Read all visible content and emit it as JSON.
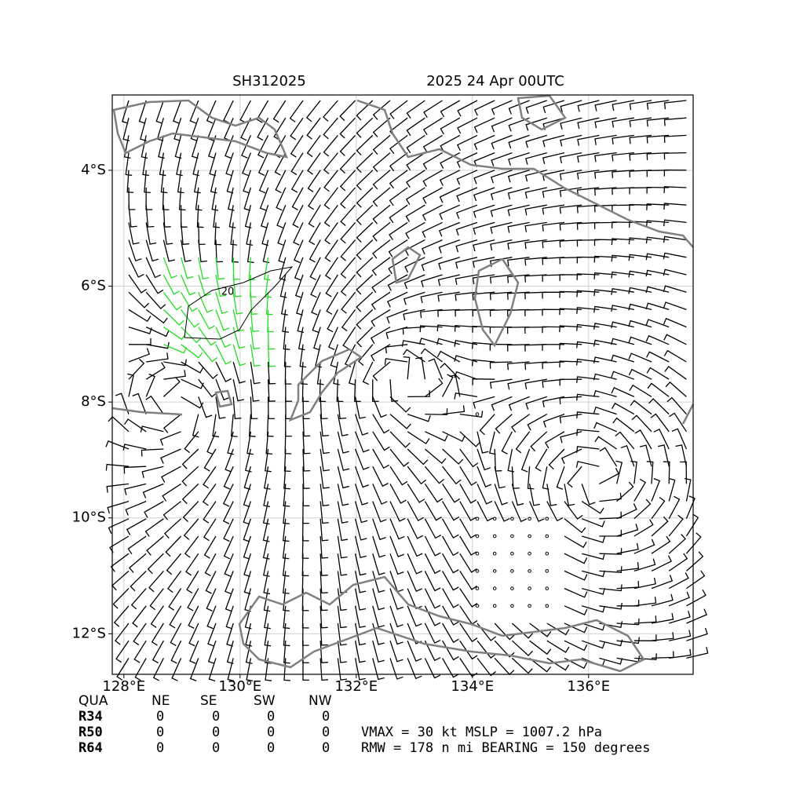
{
  "chart_data": {
    "type": "map",
    "title_left": "SH312025",
    "title_right": "2025 24 Apr 00UTC",
    "xlim": [
      127.8,
      137.8
    ],
    "ylim": [
      -12.7,
      -2.7
    ],
    "xticks": [
      {
        "value": 128,
        "label": "128°E"
      },
      {
        "value": 130,
        "label": "130°E"
      },
      {
        "value": 132,
        "label": "132°E"
      },
      {
        "value": 134,
        "label": "134°E"
      },
      {
        "value": 136,
        "label": "136°E"
      }
    ],
    "yticks": [
      {
        "value": -4,
        "label": "4°S"
      },
      {
        "value": -6,
        "label": "6°S"
      },
      {
        "value": -8,
        "label": "8°S"
      },
      {
        "value": -10,
        "label": "10°S"
      },
      {
        "value": -12,
        "label": "12°S"
      }
    ],
    "grid": true,
    "contour_label": "20",
    "table": {
      "header": [
        "QUA",
        "NE",
        "SE",
        "SW",
        "NW"
      ],
      "rows": [
        [
          "R34",
          "0",
          "0",
          "0",
          "0"
        ],
        [
          "R50",
          "0",
          "0",
          "0",
          "0"
        ],
        [
          "R64",
          "0",
          "0",
          "0",
          "0"
        ]
      ]
    },
    "info": [
      "VMAX =  30 kt MSLP = 1007.2 hPa",
      "RMW = 178 n mi BEARING = 150 degrees"
    ]
  }
}
